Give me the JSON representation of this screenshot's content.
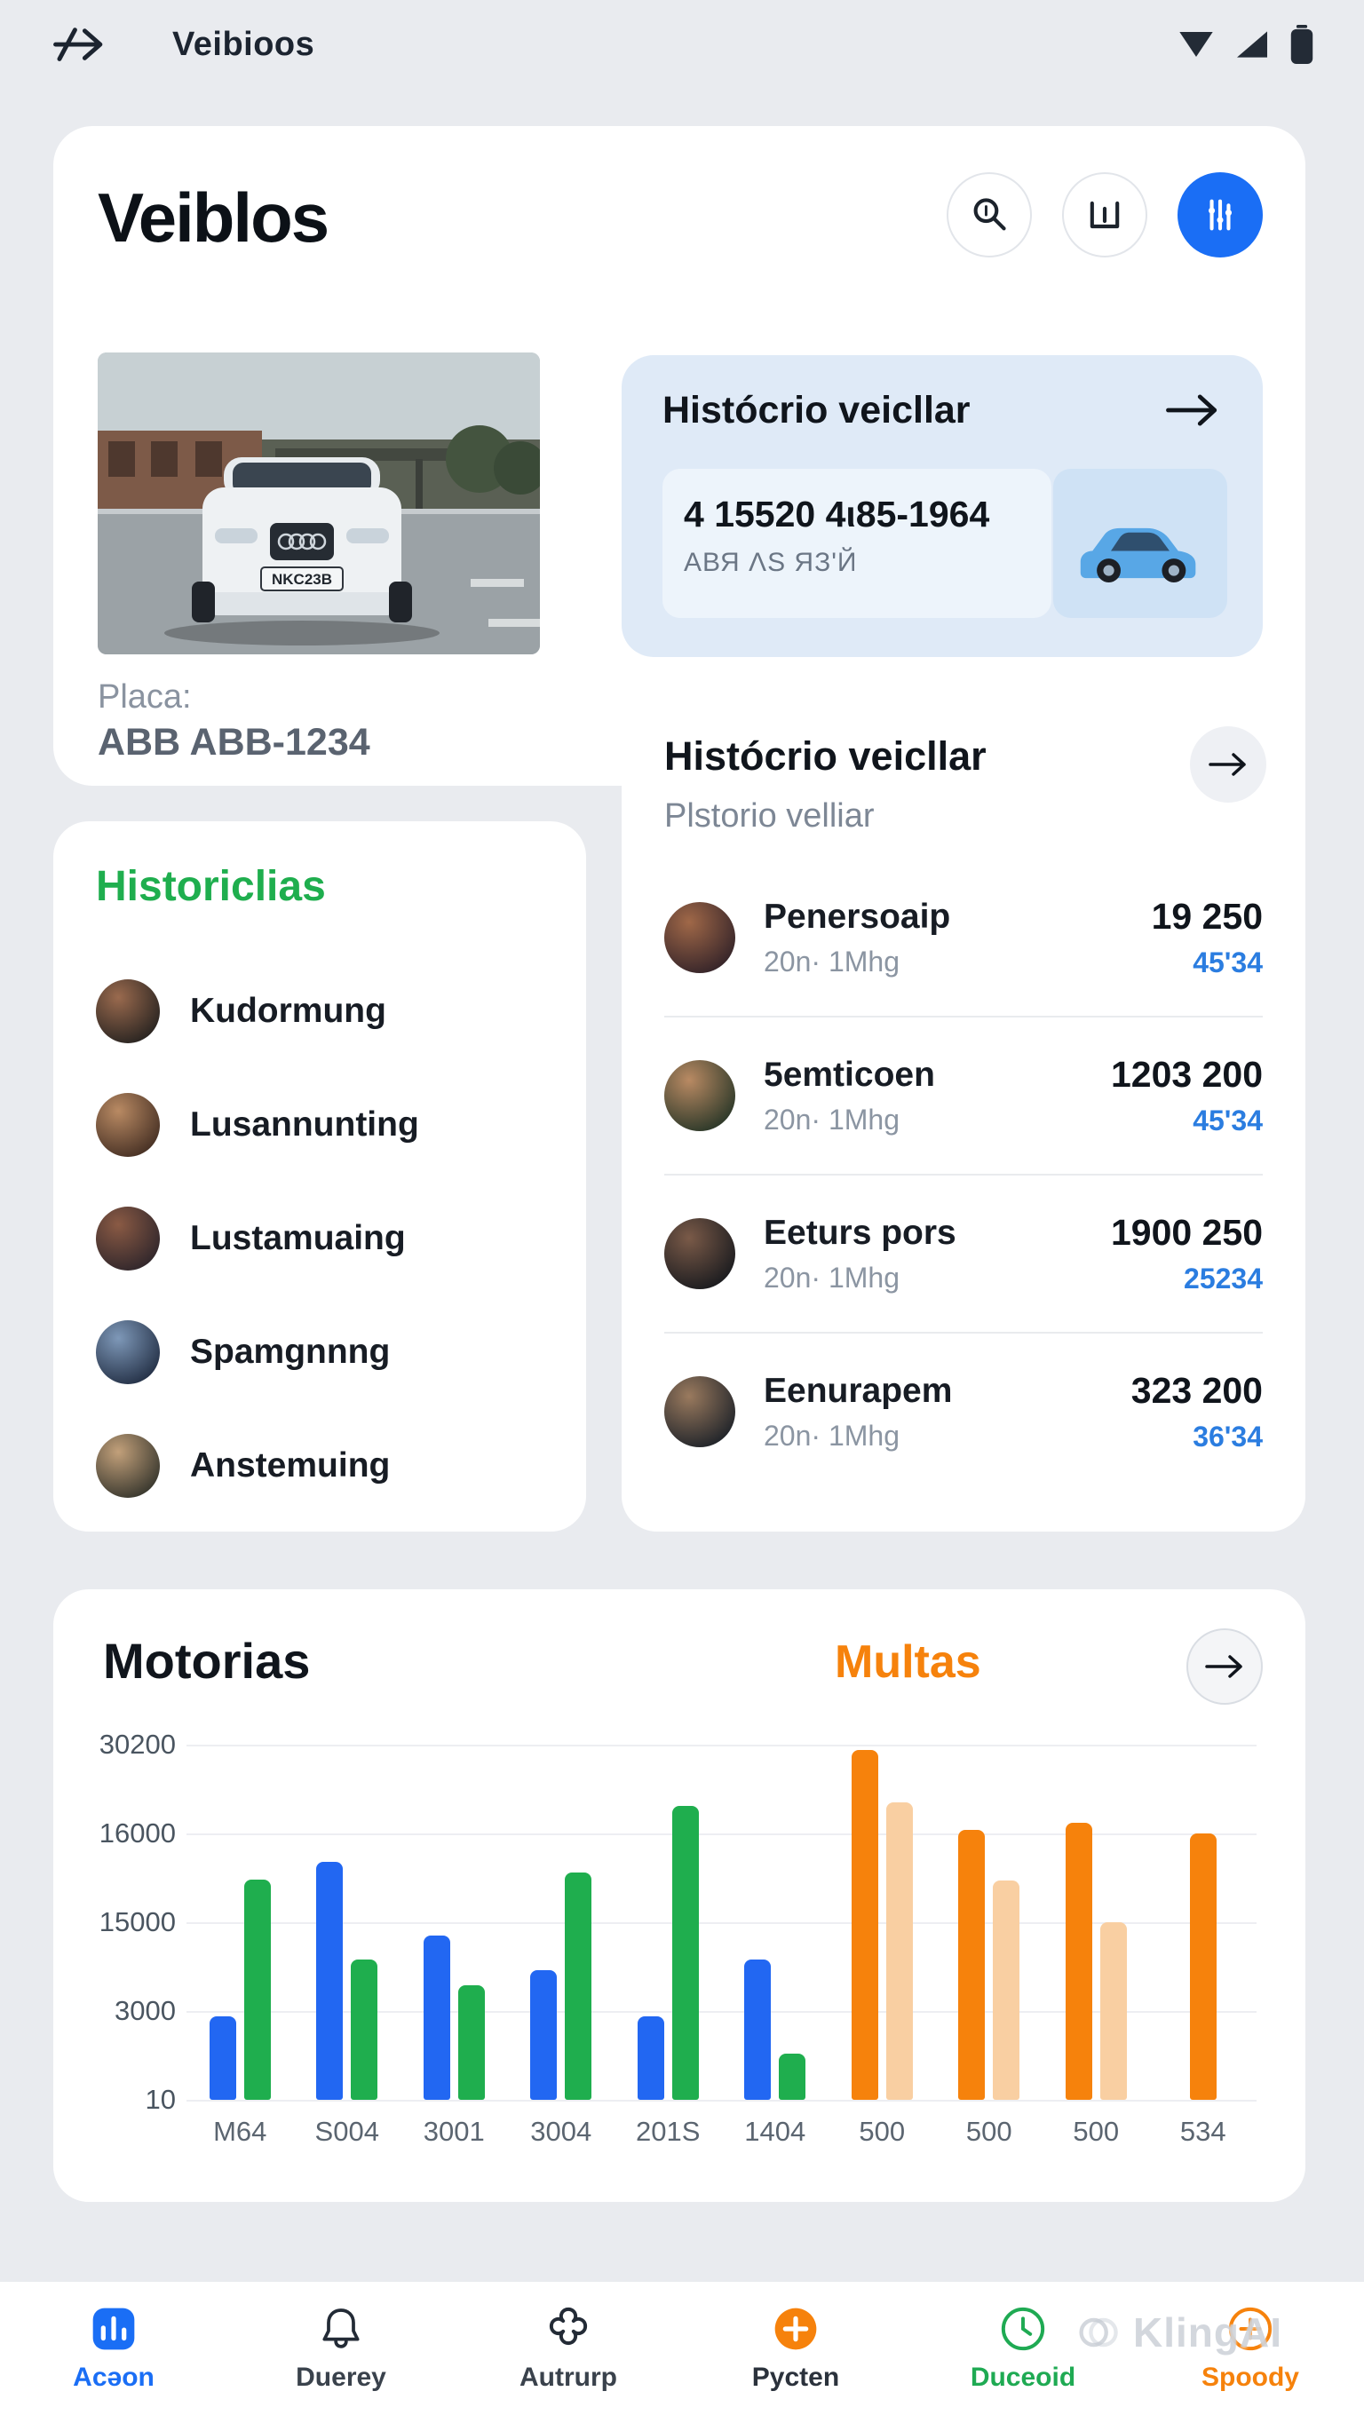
{
  "status_bar": {
    "title": "Veibioos"
  },
  "header": {
    "title": "Veiblos"
  },
  "vehicle": {
    "plate_label": "Placa:",
    "plate_value": "ABB ABB-1234",
    "photo_plate": "NKC23B"
  },
  "history_card": {
    "title": "Histócrio veicllar",
    "code_main": "4 15520  4ι85-1964",
    "code_sub": "АВЯ ΛЅ ЯЗ'Й"
  },
  "records_card": {
    "title": "Histócrio veicllar",
    "subtitle": "Plstorio velliar",
    "rows": [
      {
        "name": "Penersoaip",
        "sub": "20n· 1Mhg",
        "value": "19 250",
        "value_sub": "45'34"
      },
      {
        "name": "5emticoen",
        "sub": "20n· 1Mhg",
        "value": "1203 200",
        "value_sub": "45'34"
      },
      {
        "name": "Eeturs pors",
        "sub": "20n· 1Mhg",
        "value": "1900 250",
        "value_sub": "25234"
      },
      {
        "name": "Eenurapem",
        "sub": "20n· 1Mhg",
        "value": "323 200",
        "value_sub": "36'34"
      }
    ]
  },
  "historias_card": {
    "title": "Historiclias",
    "items": [
      "Kudormung",
      "Lusannunting",
      "Lustamuaing",
      "Spamgnnng",
      "Anstemuing"
    ]
  },
  "chart_card": {
    "title": "Motorias"
  },
  "chart_data": {
    "type": "bar",
    "title": "Motorias",
    "legend": [
      "Multas"
    ],
    "legend_position": "top",
    "grid": true,
    "y_ticks": [
      "30200",
      "16000",
      "15000",
      "3000",
      "10"
    ],
    "ymax": 34000,
    "categories": [
      "M64",
      "S004",
      "3001",
      "3004",
      "201S",
      "1404",
      "500",
      "500",
      "500",
      "534"
    ],
    "series": [
      {
        "name": "blue",
        "color": "#2267f2",
        "values": [
          8000,
          22800,
          15700,
          12400,
          8000,
          13400,
          null,
          null,
          null,
          null
        ]
      },
      {
        "name": "green",
        "color": "#1fae4e",
        "values": [
          21100,
          13400,
          11000,
          21800,
          28100,
          4400,
          null,
          null,
          null,
          null
        ]
      },
      {
        "name": "orange",
        "color": "#f6820c",
        "values": [
          null,
          null,
          null,
          null,
          null,
          null,
          33500,
          25800,
          26500,
          25500
        ]
      },
      {
        "name": "light-orange",
        "color": "#f9cfa2",
        "values": [
          null,
          null,
          null,
          null,
          null,
          null,
          28500,
          21000,
          17000,
          null
        ]
      }
    ]
  },
  "nav": {
    "items": [
      {
        "label": "Acǝon",
        "icon": "chart-square-icon",
        "icon_color": "#1a6ef5",
        "label_color": "#1a6ef5",
        "active": true
      },
      {
        "label": "Duerey",
        "icon": "bell-icon",
        "icon_color": "#232b36",
        "label_color": "#3a424c",
        "active": false
      },
      {
        "label": "Autrurp",
        "icon": "clover-icon",
        "icon_color": "#232b36",
        "label_color": "#3a424c",
        "active": false
      },
      {
        "label": "Pycten",
        "icon": "plus-circle-icon",
        "icon_color": "#f6820c",
        "label_color": "#2b323c",
        "active": false
      },
      {
        "label": "Duceoid",
        "icon": "refresh-circle-icon",
        "icon_color": "#1faa53",
        "label_color": "#1faa53",
        "active": false
      },
      {
        "label": "Spoody",
        "icon": "plus-ring-icon",
        "icon_color": "#f6820c",
        "label_color": "#f6820c",
        "active": false
      }
    ]
  },
  "watermark": {
    "text": "KlingAI"
  },
  "avatar_colors": {
    "history": [
      [
        "#9a6a4e",
        "#2c2622"
      ],
      [
        "#b98a63",
        "#4a3326"
      ],
      [
        "#8a5a44",
        "#33282c"
      ],
      [
        "#7e98b8",
        "#27344a"
      ],
      [
        "#c2a07a",
        "#3c3a30"
      ]
    ],
    "records": [
      [
        "#a06848",
        "#38262a"
      ],
      [
        "#b98a63",
        "#2f3a2a"
      ],
      [
        "#7a5a48",
        "#1d1d20"
      ],
      [
        "#9a7a5e",
        "#23262b"
      ]
    ]
  },
  "colors": {
    "accent_blue": "#1a6ef5",
    "green": "#1fae4e",
    "orange": "#f6820c",
    "value_blue": "#2b7de0",
    "page_bg": "#e9ebef",
    "history_card_bg": "#dfeaf7"
  }
}
